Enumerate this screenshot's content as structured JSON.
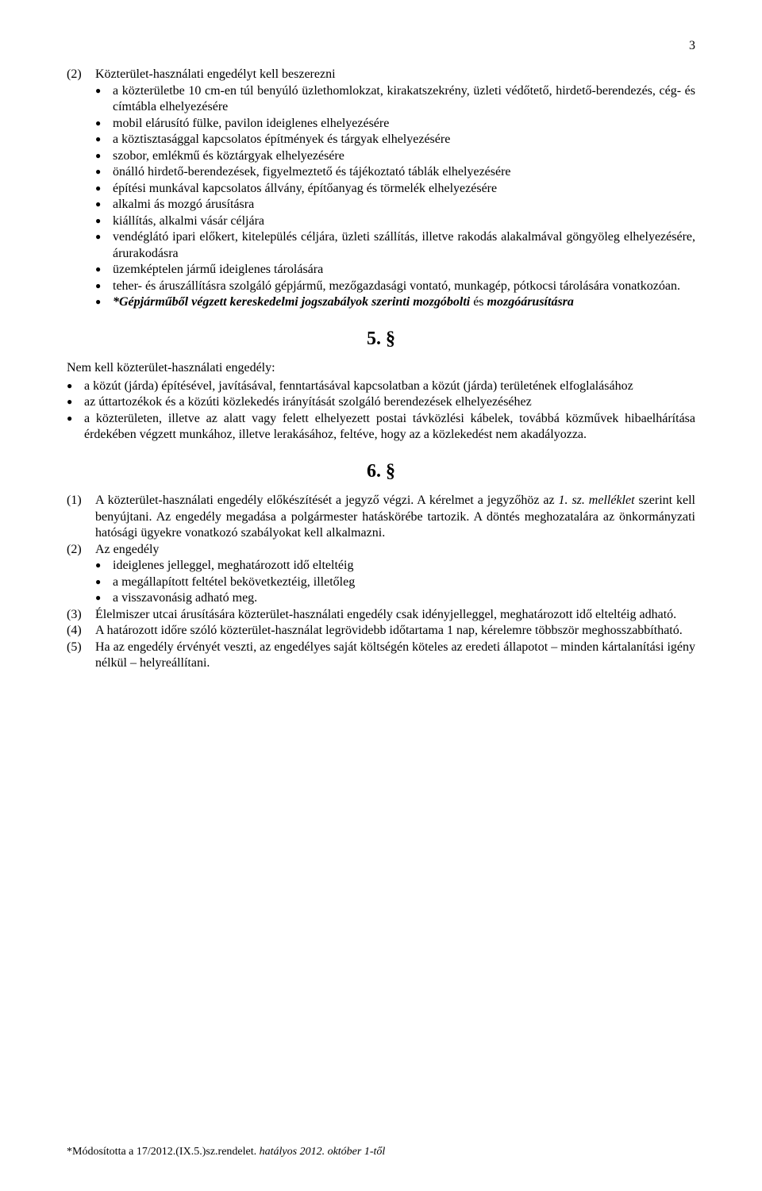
{
  "page_number": "3",
  "section4": {
    "para2_num": "(2)",
    "para2_text": "Közterület-használati engedélyt kell beszerezni",
    "bullets": [
      "a közterületbe 10 cm-en túl benyúló üzlethomlokzat, kirakatszekrény, üzleti védőtető, hirdető-berendezés, cég- és címtábla elhelyezésére",
      "mobil elárusító fülke, pavilon ideiglenes elhelyezésére",
      "a köztisztasággal kapcsolatos építmények és tárgyak elhelyezésére",
      "szobor, emlékmű és köztárgyak elhelyezésére",
      "önálló hirdető-berendezések, figyelmeztető és tájékoztató táblák elhelyezésére",
      "építési munkával kapcsolatos állvány, építőanyag és törmelék elhelyezésére",
      "alkalmi ás mozgó árusításra",
      "kiállítás, alkalmi vásár céljára",
      "vendéglátó ipari előkert, kitelepülés céljára, üzleti szállítás, illetve rakodás alakalmával göngyöleg elhelyezésére, árurakodásra",
      "üzemképtelen jármű ideiglenes tárolására",
      "teher- és áruszállításra szolgáló gépjármű, mezőgazdasági vontató, munkagép, pótkocsi tárolására vonatkozóan."
    ],
    "bullet_italic": "*Gépjárműből végzett kereskedelmi jogszabályok szerinti mozgóbolti",
    "bullet_italic_and": " és ",
    "bullet_italic_tail": "mozgóárusításra"
  },
  "section5": {
    "heading": "5. §",
    "intro": "Nem kell közterület-használati engedély:",
    "bullets": [
      "a közút (járda) építésével, javításával, fenntartásával kapcsolatban a közút (járda) területének elfoglalásához",
      "az úttartozékok és a közúti közlekedés irányítását szolgáló berendezések elhelyezéséhez",
      "a közterületen, illetve az alatt vagy felett elhelyezett postai távközlési kábelek, továbbá közművek hibaelhárítása érdekében végzett munkához, illetve lerakásához, feltéve, hogy az a közlekedést nem akadályozza."
    ]
  },
  "section6": {
    "heading": "6. §",
    "para1_num": "(1)",
    "para1_text": "A közterület-használati engedély előkészítését a jegyző végzi. A kérelmet a jegyzőhöz az 1. sz. melléklet szerint kell benyújtani. Az engedély megadása a polgármester hatáskörébe tartozik. A döntés meghozatalára az önkormányzati hatósági ügyekre vonatkozó szabályokat kell alkalmazni.",
    "para2_num": "(2)",
    "para2_text": "Az engedély",
    "para2_bullets": [
      "ideiglenes jelleggel, meghatározott idő elteltéig",
      "a megállapított feltétel bekövetkeztéig, illetőleg",
      "a visszavonásig adható meg."
    ],
    "para3_num": "(3)",
    "para3_text": "Élelmiszer utcai árusítására közterület-használati engedély csak idényjelleggel, meghatározott idő elteltéig adható.",
    "para4_num": "(4)",
    "para4_text": "A határozott időre szóló közterület-használat legrövidebb időtartama 1 nap, kérelemre többször meghosszabbítható.",
    "para5_num": "(5)",
    "para5_text": "Ha az engedély érvényét veszti, az engedélyes saját költségén köteles az eredeti állapotot – minden kártalanítási igény nélkül – helyreállítani."
  },
  "footer": {
    "prefix": "*Módosította a 17/2012.(IX.5.)sz.rendelet.",
    "suffix": " hatályos 2012. október 1-től"
  }
}
